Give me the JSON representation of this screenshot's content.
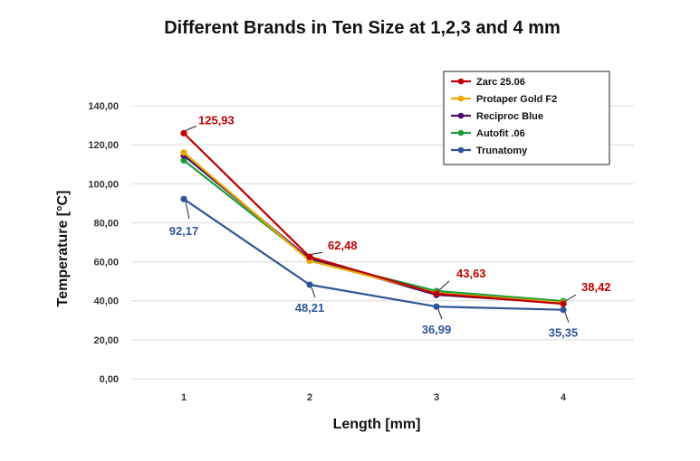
{
  "chart_data": {
    "type": "line",
    "title": "Different Brands in Ten Size at 1,2,3 and 4 mm",
    "xlabel": "Length [mm]",
    "ylabel": "Temperature [°C]",
    "x": [
      1,
      2,
      3,
      4
    ],
    "x_tick_labels": [
      "1",
      "2",
      "3",
      "4"
    ],
    "ylim": [
      0,
      140
    ],
    "y_ticks": [
      0,
      20,
      40,
      60,
      80,
      100,
      120,
      140
    ],
    "y_tick_labels": [
      "0,00",
      "20,00",
      "40,00",
      "60,00",
      "80,00",
      "100,00",
      "120,00",
      "140,00"
    ],
    "grid": true,
    "legend_position": "top-right",
    "series": [
      {
        "name": "Zarc 25.06",
        "color": "#C00000",
        "values": [
          125.93,
          62.48,
          43.63,
          38.42
        ]
      },
      {
        "name": "Protaper Gold F2",
        "color": "#E8A800",
        "values": [
          116,
          60.5,
          44,
          39
        ]
      },
      {
        "name": "Reciproc Blue",
        "color": "#4B0F6B",
        "values": [
          114.5,
          61.5,
          43,
          38.8
        ]
      },
      {
        "name": "Autofit .06",
        "color": "#1E9C3A",
        "values": [
          112,
          61.2,
          45,
          39.8
        ]
      },
      {
        "name": "Trunatomy",
        "color": "#2F5597",
        "values": [
          92.17,
          48.21,
          36.99,
          35.35
        ]
      }
    ],
    "annotations": [
      {
        "series": "Zarc 25.06",
        "index": 0,
        "text": "125,93",
        "color": "#C00000"
      },
      {
        "series": "Zarc 25.06",
        "index": 1,
        "text": "62,48",
        "color": "#C00000"
      },
      {
        "series": "Zarc 25.06",
        "index": 2,
        "text": "43,63",
        "color": "#C00000"
      },
      {
        "series": "Zarc 25.06",
        "index": 3,
        "text": "38,42",
        "color": "#C00000"
      },
      {
        "series": "Trunatomy",
        "index": 0,
        "text": "92,17",
        "color": "#2F5597"
      },
      {
        "series": "Trunatomy",
        "index": 1,
        "text": "48,21",
        "color": "#2F5597"
      },
      {
        "series": "Trunatomy",
        "index": 2,
        "text": "36,99",
        "color": "#2F5597"
      },
      {
        "series": "Trunatomy",
        "index": 3,
        "text": "35,35",
        "color": "#2F5597"
      }
    ]
  }
}
